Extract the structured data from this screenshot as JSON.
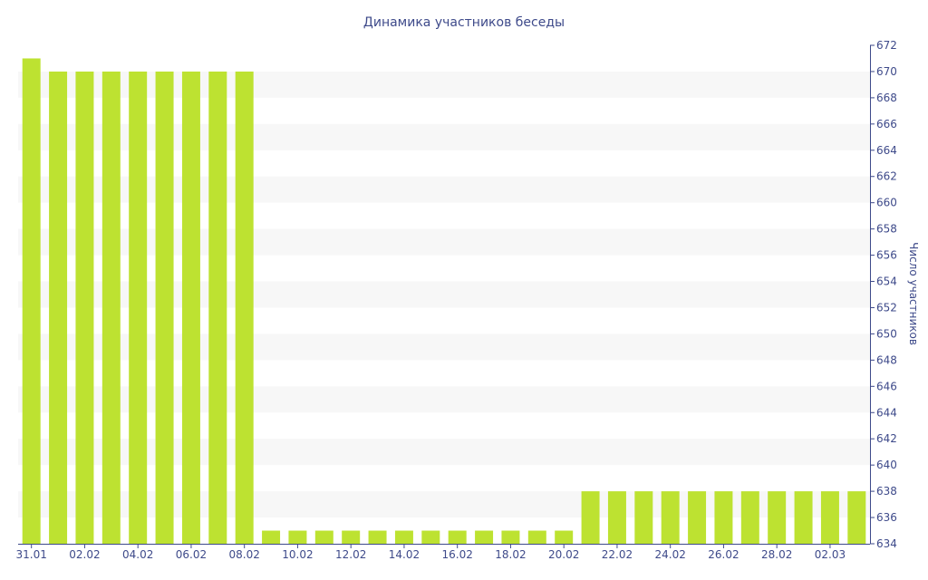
{
  "chart_data": {
    "type": "bar",
    "title": "Динамика участников беседы",
    "ylabel": "Число участников",
    "xlabel": "",
    "ylim": [
      634,
      672
    ],
    "ytick_step": 2,
    "y_axis_side": "right",
    "grid": "alternating horizontal bands",
    "legend": "none",
    "bar_color": "#bde231",
    "band_color": "#f7f7f7",
    "text_color": "#3e4a8a",
    "categories": [
      "31.01",
      "01.02",
      "02.02",
      "03.02",
      "04.02",
      "05.02",
      "06.02",
      "07.02",
      "08.02",
      "09.02",
      "10.02",
      "11.02",
      "12.02",
      "13.02",
      "14.02",
      "15.02",
      "16.02",
      "17.02",
      "18.02",
      "19.02",
      "20.02",
      "21.02",
      "22.02",
      "23.02",
      "24.02",
      "25.02",
      "26.02",
      "27.02",
      "28.02",
      "01.03",
      "02.03",
      "03.03"
    ],
    "tick_labels": [
      "31.01",
      "",
      "02.02",
      "",
      "04.02",
      "",
      "06.02",
      "",
      "08.02",
      "",
      "10.02",
      "",
      "12.02",
      "",
      "14.02",
      "",
      "16.02",
      "",
      "18.02",
      "",
      "20.02",
      "",
      "22.02",
      "",
      "24.02",
      "",
      "26.02",
      "",
      "28.02",
      "",
      "02.03",
      ""
    ],
    "values": [
      671,
      670,
      670,
      670,
      670,
      670,
      670,
      670,
      670,
      635,
      635,
      635,
      635,
      635,
      635,
      635,
      635,
      635,
      635,
      635,
      635,
      638,
      638,
      638,
      638,
      638,
      638,
      638,
      638,
      638,
      638,
      638
    ]
  }
}
